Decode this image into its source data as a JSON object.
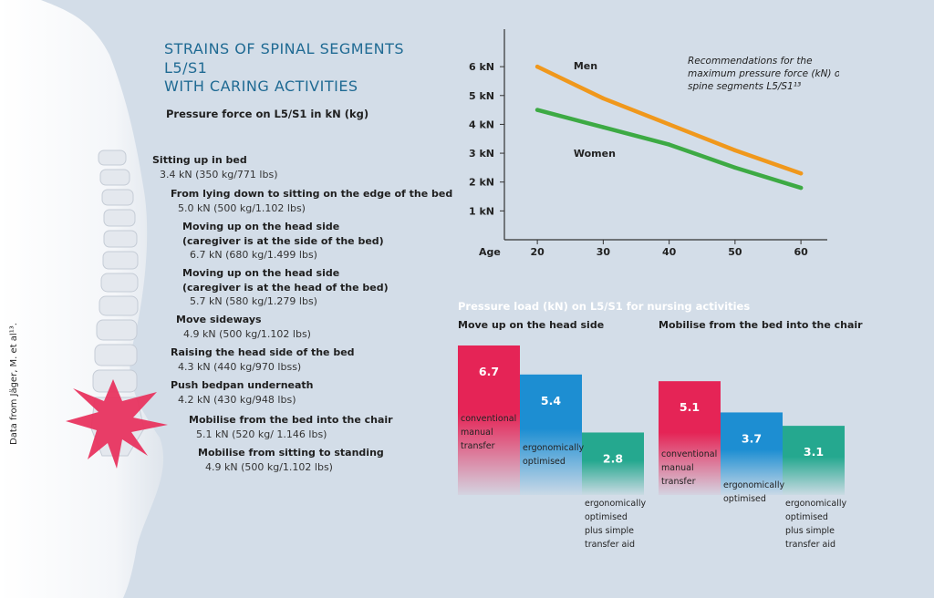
{
  "title_lines": [
    "STRAINS OF SPINAL SEGMENTS",
    "L5/S1",
    "WITH CARING ACTIVITIES"
  ],
  "subtitle": "Pressure force on L5/S1 in kN (kg)",
  "side_credit": "Data from Jäger, M. et al¹³.",
  "activities": [
    {
      "label": "Sitting up in bed",
      "value": "3.4 kN (350 kg/771 lbs)"
    },
    {
      "label": "From lying down to sitting on the edge of the bed",
      "value": "5.0 kN (500 kg/1.102 lbs)"
    },
    {
      "label_lines": [
        "Moving up on the head side",
        "(caregiver is at the side of the bed)"
      ],
      "value": "6.7 kN (680 kg/1.499 lbs)"
    },
    {
      "label_lines": [
        "Moving up on the head side",
        "(caregiver is at the head of the bed)"
      ],
      "value": "5.7 kN (580 kg/1.279 lbs)"
    },
    {
      "label": "Move sideways",
      "value": "4.9 kN (500 kg/1.102 lbs)"
    },
    {
      "label": "Raising the head side of the bed",
      "value": "4.3 kN (440 kg/970 lbss)"
    },
    {
      "label": "Push bedpan underneath",
      "value": "4.2 kN (430 kg/948 lbs)"
    },
    {
      "label": "Mobilise from the bed into the chair",
      "value": "5.1 kN (520 kg/ 1.146 lbs)"
    },
    {
      "label": "Mobilise from sitting to standing",
      "value": "4.9 kN (500 kg/1.102 lbs)"
    }
  ],
  "chart_data": [
    {
      "type": "line",
      "title": "",
      "annotation_lines": [
        "Recommendations for the",
        "maximum pressure force (kN) on",
        "spine segments L5/S1¹³"
      ],
      "xlabel": "Age",
      "ylabel": "",
      "x": [
        20,
        30,
        40,
        50,
        60
      ],
      "x_tick_labels": [
        "20",
        "30",
        "40",
        "50",
        "60"
      ],
      "y_tick_values": [
        1,
        2,
        3,
        4,
        5,
        6
      ],
      "y_tick_labels": [
        "1 kN",
        "2 kN",
        "3 kN",
        "4 kN",
        "5 kN",
        "6 kN"
      ],
      "xlim": [
        15,
        64
      ],
      "ylim": [
        0,
        7.3
      ],
      "grid": false,
      "legend": "inline labels",
      "series": [
        {
          "name": "Men",
          "color": "#f0981c",
          "values": [
            6.0,
            4.9,
            4.0,
            3.1,
            2.3
          ]
        },
        {
          "name": "Women",
          "color": "#3daa44",
          "values": [
            4.5,
            3.9,
            3.3,
            2.5,
            1.8
          ]
        }
      ]
    },
    {
      "type": "bar",
      "title": "Pressure load (kN) on L5/S1 for nursing activities",
      "groups": [
        {
          "title": "Move up on the head side",
          "values": [
            6.7,
            5.4,
            2.8
          ],
          "value_labels": [
            "6.7",
            "5.4",
            "2.8"
          ]
        },
        {
          "title": "Mobilise from the bed into the chair",
          "values": [
            5.1,
            3.7,
            3.1
          ],
          "value_labels": [
            "5.1",
            "3.7",
            "3.1"
          ]
        }
      ],
      "categories": [
        {
          "lines": [
            "conventional",
            "manual",
            "transfer"
          ],
          "color": "#e52456"
        },
        {
          "lines": [
            "ergonomically",
            "optimised"
          ],
          "color": "#1d8ed2"
        },
        {
          "lines": [
            "ergonomically",
            "optimised",
            "plus simple",
            "transfer aid"
          ],
          "color": "#25a88f"
        }
      ],
      "ylim": [
        0,
        6.7
      ]
    }
  ]
}
